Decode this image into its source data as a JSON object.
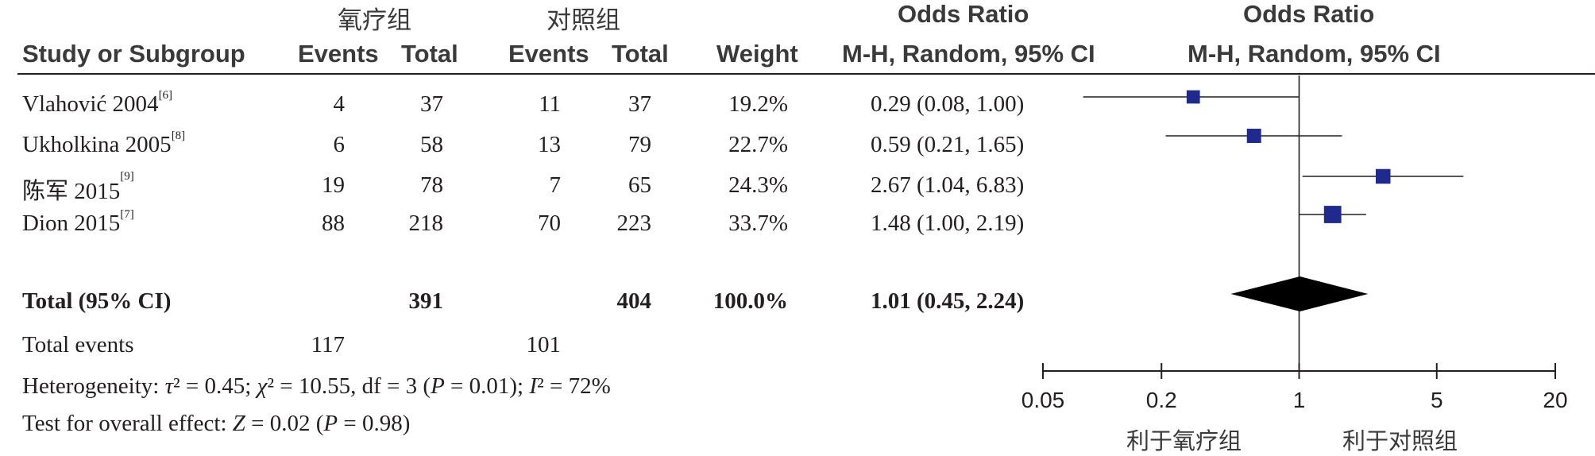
{
  "group_headers": {
    "treatment": "氧疗组",
    "control": "对照组",
    "or_table": "Odds Ratio",
    "or_plot": "Odds Ratio"
  },
  "columns": {
    "study": "Study or Subgroup",
    "t_events": "Events",
    "t_total": "Total",
    "c_events": "Events",
    "c_total": "Total",
    "weight": "Weight",
    "or_method": "M-H, Random, 95% CI",
    "plot_method": "M-H, Random, 95% CI"
  },
  "studies": [
    {
      "name": "Vlahović 2004",
      "ref": "[6]",
      "t_events": "4",
      "t_total": "37",
      "c_events": "11",
      "c_total": "37",
      "weight": "19.2%",
      "ci_text": "0.29 (0.08, 1.00)"
    },
    {
      "name": "Ukholkina 2005",
      "ref": "[8]",
      "t_events": "6",
      "t_total": "58",
      "c_events": "13",
      "c_total": "79",
      "weight": "22.7%",
      "ci_text": "0.59 (0.21, 1.65)"
    },
    {
      "name": "陈军 2015",
      "ref": "[9]",
      "t_events": "19",
      "t_total": "78",
      "c_events": "7",
      "c_total": "65",
      "weight": "24.3%",
      "ci_text": "2.67 (1.04, 6.83)"
    },
    {
      "name": "Dion 2015",
      "ref": "[7]",
      "t_events": "88",
      "t_total": "218",
      "c_events": "70",
      "c_total": "223",
      "weight": "33.7%",
      "ci_text": "1.48 (1.00, 2.19)"
    }
  ],
  "total": {
    "label": "Total (95% CI)",
    "t_total": "391",
    "c_total": "404",
    "weight": "100.0%",
    "ci_text": "1.01 (0.45, 2.24)"
  },
  "total_events": {
    "label": "Total events",
    "t_events": "117",
    "c_events": "101"
  },
  "heterogeneity": {
    "prefix": "Heterogeneity: ",
    "tau_sym": "τ",
    "tau_rest": "² = 0.45; ",
    "chi_sym": "χ",
    "chi_rest": "² = 10.55, df = 3 (",
    "p_sym": "P",
    "p_rest": " = 0.01); ",
    "i_sym": "I",
    "i_rest": "² = 72%"
  },
  "overall_effect": {
    "prefix": "Test for overall effect: ",
    "z_sym": "Z",
    "z_rest": " = 0.02 (",
    "p_sym": "P",
    "p_rest": " = 0.98)"
  },
  "favours": {
    "left": "利于氧疗组",
    "right": "利于对照组"
  },
  "colors": {
    "marker": "#1f2a8c",
    "diamond": "#000000",
    "line": "#231f20"
  },
  "chart_data": {
    "type": "scatter",
    "scale": "log",
    "xlim": [
      0.05,
      20
    ],
    "ticks": [
      "0.05",
      "0.2",
      "1",
      "5",
      "20"
    ],
    "tick_values": [
      0.05,
      0.2,
      1,
      5,
      20
    ],
    "null_value": 1,
    "series": [
      {
        "name": "Vlahović 2004",
        "or": 0.29,
        "lo": 0.08,
        "hi": 1.0,
        "weight": 19.2
      },
      {
        "name": "Ukholkina 2005",
        "or": 0.59,
        "lo": 0.21,
        "hi": 1.65,
        "weight": 22.7
      },
      {
        "name": "陈军 2015",
        "or": 2.67,
        "lo": 1.04,
        "hi": 6.83,
        "weight": 24.3
      },
      {
        "name": "Dion 2015",
        "or": 1.48,
        "lo": 1.0,
        "hi": 2.19,
        "weight": 33.7
      }
    ],
    "pooled": {
      "or": 1.01,
      "lo": 0.45,
      "hi": 2.24
    }
  }
}
